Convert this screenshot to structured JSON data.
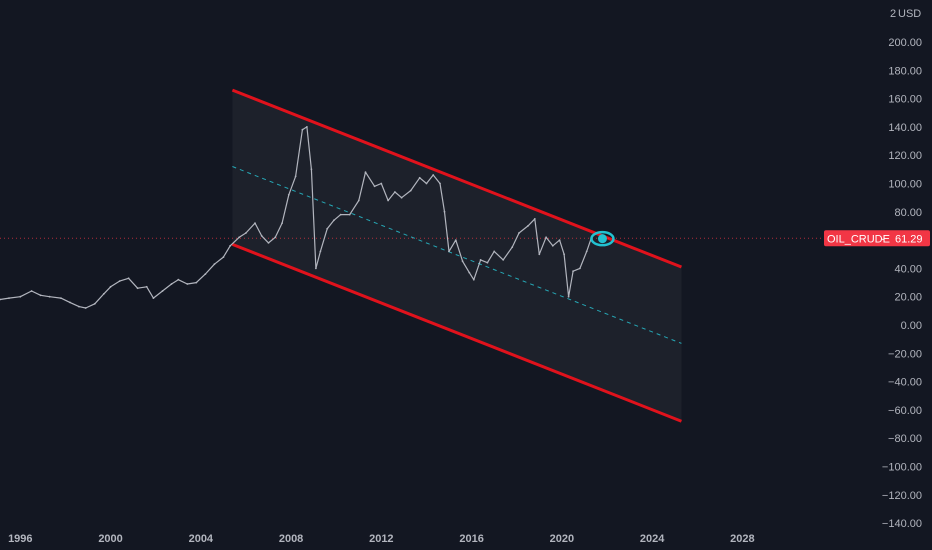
{
  "chart_data": {
    "type": "line",
    "symbol": "OIL_CRUDE",
    "last_price": 61.29,
    "last_price_label": "61.29",
    "currency": "USD",
    "scale_mode": "2",
    "ylim": [
      -150,
      210
    ],
    "yticks": [
      200,
      180,
      160,
      140,
      120,
      100,
      80,
      60,
      40,
      20,
      0,
      -20,
      -40,
      -60,
      -80,
      -100,
      -120,
      -140
    ],
    "ytick_labels": [
      "200.00",
      "180.00",
      "160.00",
      "140.00",
      "120.00",
      "100.00",
      "80.00",
      "60.00",
      "40.00",
      "20.00",
      "0.00",
      "−20.00",
      "−40.00",
      "−60.00",
      "−80.00",
      "−100.00",
      "−120.00",
      "−140.00"
    ],
    "xlim": [
      1995.1,
      2034.1
    ],
    "xticks": [
      1996,
      2000,
      2004,
      2008,
      2012,
      2016,
      2020,
      2024,
      2028
    ],
    "xtick_labels": [
      "1996",
      "2000",
      "2004",
      "2008",
      "2012",
      "2016",
      "2020",
      "2024",
      "2028"
    ],
    "grid": false,
    "series": [
      {
        "x": [
          1995.1,
          1995.5,
          1996,
          1996.5,
          1996.9,
          1997.3,
          1997.8,
          1998.2,
          1998.6,
          1998.9,
          1999.3,
          1999.7,
          2000,
          2000.4,
          2000.8,
          2001.2,
          2001.6,
          2001.9,
          2002.3,
          2002.7,
          2003,
          2003.4,
          2003.8,
          2004.2,
          2004.6,
          2005,
          2005.3,
          2005.7,
          2006,
          2006.4,
          2006.7,
          2007,
          2007.3,
          2007.6,
          2007.9,
          2008.2,
          2008.5,
          2008.7,
          2008.9,
          2009.1,
          2009.3,
          2009.6,
          2009.9,
          2010.2,
          2010.6,
          2011,
          2011.3,
          2011.7,
          2012,
          2012.3,
          2012.6,
          2012.9,
          2013.3,
          2013.7,
          2014,
          2014.3,
          2014.6,
          2014.8,
          2015,
          2015.3,
          2015.6,
          2015.9,
          2016.1,
          2016.4,
          2016.7,
          2017,
          2017.4,
          2017.8,
          2018.1,
          2018.5,
          2018.8,
          2019,
          2019.3,
          2019.6,
          2019.9,
          2020.1,
          2020.3,
          2020.5,
          2020.8,
          2021.1,
          2021.3
        ],
        "y": [
          18,
          19,
          20,
          24,
          21,
          20,
          19,
          16,
          13,
          12,
          15,
          22,
          27,
          31,
          33,
          26,
          27,
          19,
          24,
          29,
          32,
          29,
          30,
          36,
          43,
          48,
          56,
          62,
          65,
          72,
          63,
          58,
          62,
          72,
          92,
          105,
          138,
          140,
          110,
          40,
          52,
          68,
          74,
          78,
          78,
          88,
          108,
          98,
          100,
          88,
          94,
          90,
          95,
          104,
          100,
          106,
          100,
          80,
          52,
          60,
          45,
          37,
          32,
          46,
          44,
          52,
          46,
          55,
          65,
          70,
          75,
          50,
          62,
          56,
          60,
          50,
          20,
          38,
          40,
          52,
          61.29
        ]
      }
    ],
    "channel": {
      "upper": {
        "x": [
          2005.4,
          2025.3
        ],
        "y": [
          166,
          41
        ]
      },
      "lower": {
        "x": [
          2005.4,
          2025.3
        ],
        "y": [
          57,
          -68
        ]
      },
      "middle": {
        "x": [
          2005.4,
          2025.3
        ],
        "y": [
          112,
          -13
        ]
      }
    },
    "colors": {
      "background": "#131722",
      "price": "#b2b5be",
      "channel_line": "#e0121c",
      "channel_fill": "#1f222c",
      "midline": "#26a7b5",
      "annotation": "#22c2d1",
      "label_bg": "#f23645",
      "axis_text": "#b2b5be"
    },
    "annotation": {
      "type": "eye-icon",
      "x": 2021.8,
      "y": 61
    }
  }
}
